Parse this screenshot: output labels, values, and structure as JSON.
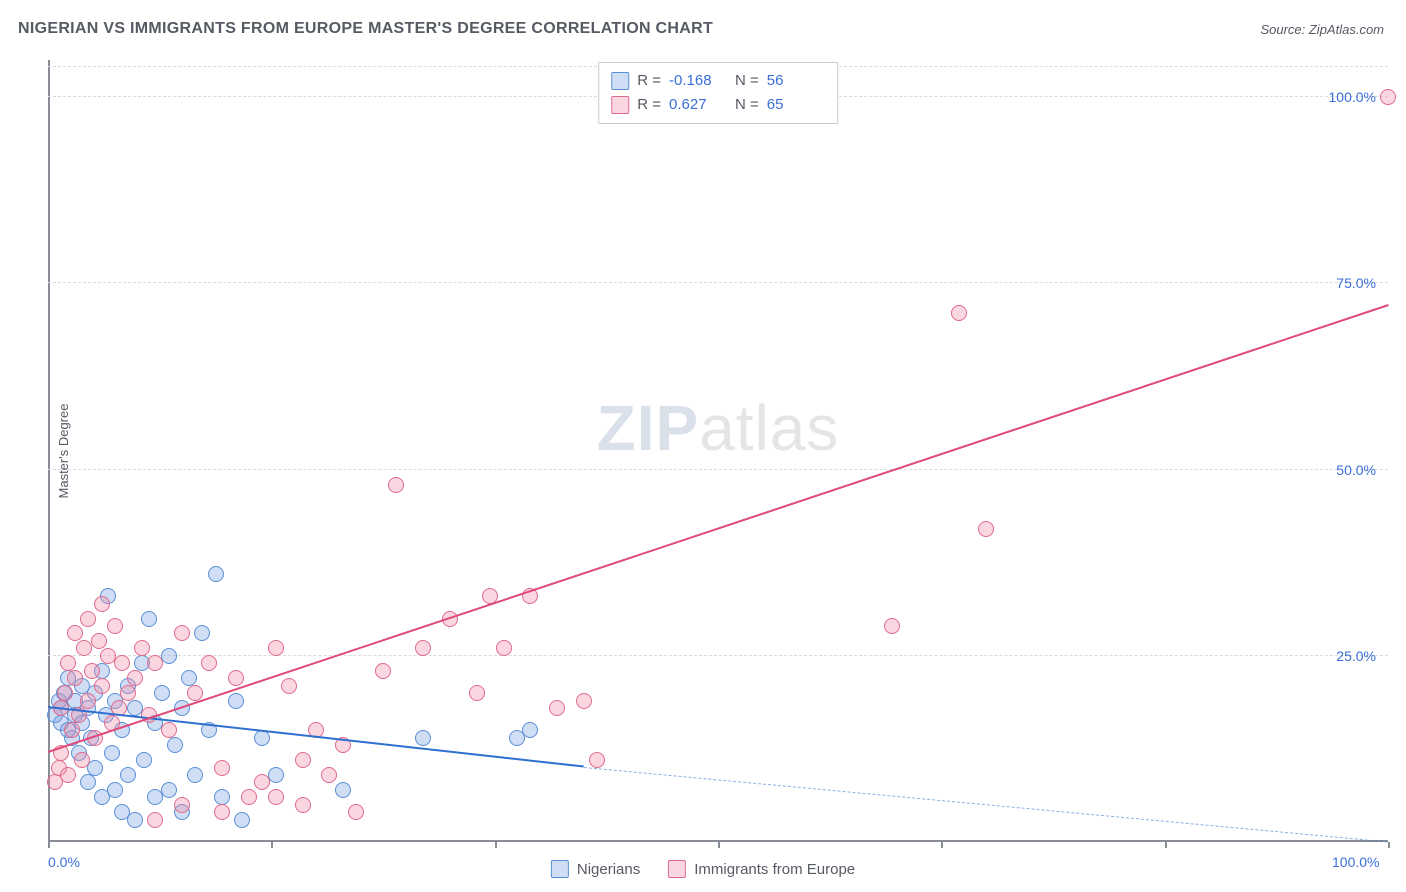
{
  "title": "NIGERIAN VS IMMIGRANTS FROM EUROPE MASTER'S DEGREE CORRELATION CHART",
  "source_label": "Source: ZipAtlas.com",
  "watermark": {
    "bold": "ZIP",
    "rest": "atlas"
  },
  "chart": {
    "type": "scatter",
    "ylabel": "Master's Degree",
    "xlim": [
      0,
      100
    ],
    "ylim": [
      0,
      105
    ],
    "x_ticks": [
      0,
      16.67,
      33.33,
      50,
      66.67,
      83.33,
      100
    ],
    "x_tick_labels": {
      "0": "0.0%",
      "100": "100.0%"
    },
    "y_gridlines": [
      25,
      50,
      75,
      100
    ],
    "y_tick_labels": {
      "25": "25.0%",
      "50": "50.0%",
      "75": "75.0%",
      "100": "100.0%"
    },
    "grid_color": "#d9dbe0",
    "axis_color": "#888c94",
    "background_color": "#ffffff",
    "label_color": "#3a6fd8",
    "point_radius": 8,
    "series": [
      {
        "name": "Nigerians",
        "fill": "rgba(120,160,225,0.35)",
        "stroke": "#5a8fd6",
        "r_value": "-0.168",
        "n_value": "56",
        "trend": {
          "x1": 0,
          "y1": 18,
          "x2": 40,
          "y2": 10,
          "color": "#2f6fd0",
          "dash_extend_to_x": 100,
          "dash_y": 0
        },
        "points": [
          [
            0.5,
            17
          ],
          [
            0.8,
            19
          ],
          [
            1,
            16
          ],
          [
            1,
            18
          ],
          [
            1.2,
            20
          ],
          [
            1.5,
            15
          ],
          [
            1.5,
            22
          ],
          [
            1.8,
            14
          ],
          [
            2,
            17
          ],
          [
            2,
            19
          ],
          [
            2.3,
            12
          ],
          [
            2.5,
            21
          ],
          [
            2.5,
            16
          ],
          [
            3,
            18
          ],
          [
            3,
            8
          ],
          [
            3.2,
            14
          ],
          [
            3.5,
            20
          ],
          [
            3.5,
            10
          ],
          [
            4,
            23
          ],
          [
            4,
            6
          ],
          [
            4.3,
            17
          ],
          [
            4.5,
            33
          ],
          [
            4.8,
            12
          ],
          [
            5,
            19
          ],
          [
            5,
            7
          ],
          [
            5.5,
            15
          ],
          [
            5.5,
            4
          ],
          [
            6,
            21
          ],
          [
            6,
            9
          ],
          [
            6.5,
            18
          ],
          [
            6.5,
            3
          ],
          [
            7,
            24
          ],
          [
            7.2,
            11
          ],
          [
            7.5,
            30
          ],
          [
            8,
            16
          ],
          [
            8,
            6
          ],
          [
            8.5,
            20
          ],
          [
            9,
            25
          ],
          [
            9,
            7
          ],
          [
            9.5,
            13
          ],
          [
            10,
            18
          ],
          [
            10,
            4
          ],
          [
            10.5,
            22
          ],
          [
            11,
            9
          ],
          [
            11.5,
            28
          ],
          [
            12,
            15
          ],
          [
            12.5,
            36
          ],
          [
            13,
            6
          ],
          [
            14,
            19
          ],
          [
            14.5,
            3
          ],
          [
            16,
            14
          ],
          [
            17,
            9
          ],
          [
            22,
            7
          ],
          [
            28,
            14
          ],
          [
            35,
            14
          ],
          [
            36,
            15
          ]
        ]
      },
      {
        "name": "Immigrants from Europe",
        "fill": "rgba(240,140,165,0.35)",
        "stroke": "#e06a8e",
        "r_value": "0.627",
        "n_value": "65",
        "trend": {
          "x1": 0,
          "y1": 12,
          "x2": 100,
          "y2": 72,
          "color": "#e04a7a"
        },
        "points": [
          [
            0.5,
            8
          ],
          [
            0.8,
            10
          ],
          [
            1,
            12
          ],
          [
            1,
            18
          ],
          [
            1.3,
            20
          ],
          [
            1.5,
            9
          ],
          [
            1.5,
            24
          ],
          [
            1.8,
            15
          ],
          [
            2,
            22
          ],
          [
            2,
            28
          ],
          [
            2.3,
            17
          ],
          [
            2.5,
            11
          ],
          [
            2.7,
            26
          ],
          [
            3,
            19
          ],
          [
            3,
            30
          ],
          [
            3.3,
            23
          ],
          [
            3.5,
            14
          ],
          [
            3.8,
            27
          ],
          [
            4,
            21
          ],
          [
            4,
            32
          ],
          [
            4.5,
            25
          ],
          [
            4.8,
            16
          ],
          [
            5,
            29
          ],
          [
            5.3,
            18
          ],
          [
            5.5,
            24
          ],
          [
            6,
            20
          ],
          [
            6.5,
            22
          ],
          [
            7,
            26
          ],
          [
            7.5,
            17
          ],
          [
            8,
            24
          ],
          [
            9,
            15
          ],
          [
            10,
            28
          ],
          [
            11,
            20
          ],
          [
            12,
            24
          ],
          [
            13,
            10
          ],
          [
            14,
            22
          ],
          [
            15,
            6
          ],
          [
            16,
            8
          ],
          [
            17,
            26
          ],
          [
            18,
            21
          ],
          [
            19,
            11
          ],
          [
            20,
            15
          ],
          [
            21,
            9
          ],
          [
            22,
            13
          ],
          [
            25,
            23
          ],
          [
            26,
            48
          ],
          [
            28,
            26
          ],
          [
            30,
            30
          ],
          [
            32,
            20
          ],
          [
            33,
            33
          ],
          [
            34,
            26
          ],
          [
            36,
            33
          ],
          [
            38,
            18
          ],
          [
            40,
            19
          ],
          [
            41,
            11
          ],
          [
            63,
            29
          ],
          [
            68,
            71
          ],
          [
            70,
            42
          ],
          [
            100,
            100
          ],
          [
            23,
            4
          ],
          [
            19,
            5
          ],
          [
            17,
            6
          ],
          [
            13,
            4
          ],
          [
            10,
            5
          ],
          [
            8,
            3
          ]
        ]
      }
    ],
    "legend_top": {
      "r_label": "R =",
      "n_label": "N ="
    },
    "legend_bottom": [
      {
        "label": "Nigerians",
        "fill": "rgba(120,160,225,0.35)",
        "stroke": "#5a8fd6"
      },
      {
        "label": "Immigrants from Europe",
        "fill": "rgba(240,140,165,0.35)",
        "stroke": "#e06a8e"
      }
    ]
  }
}
